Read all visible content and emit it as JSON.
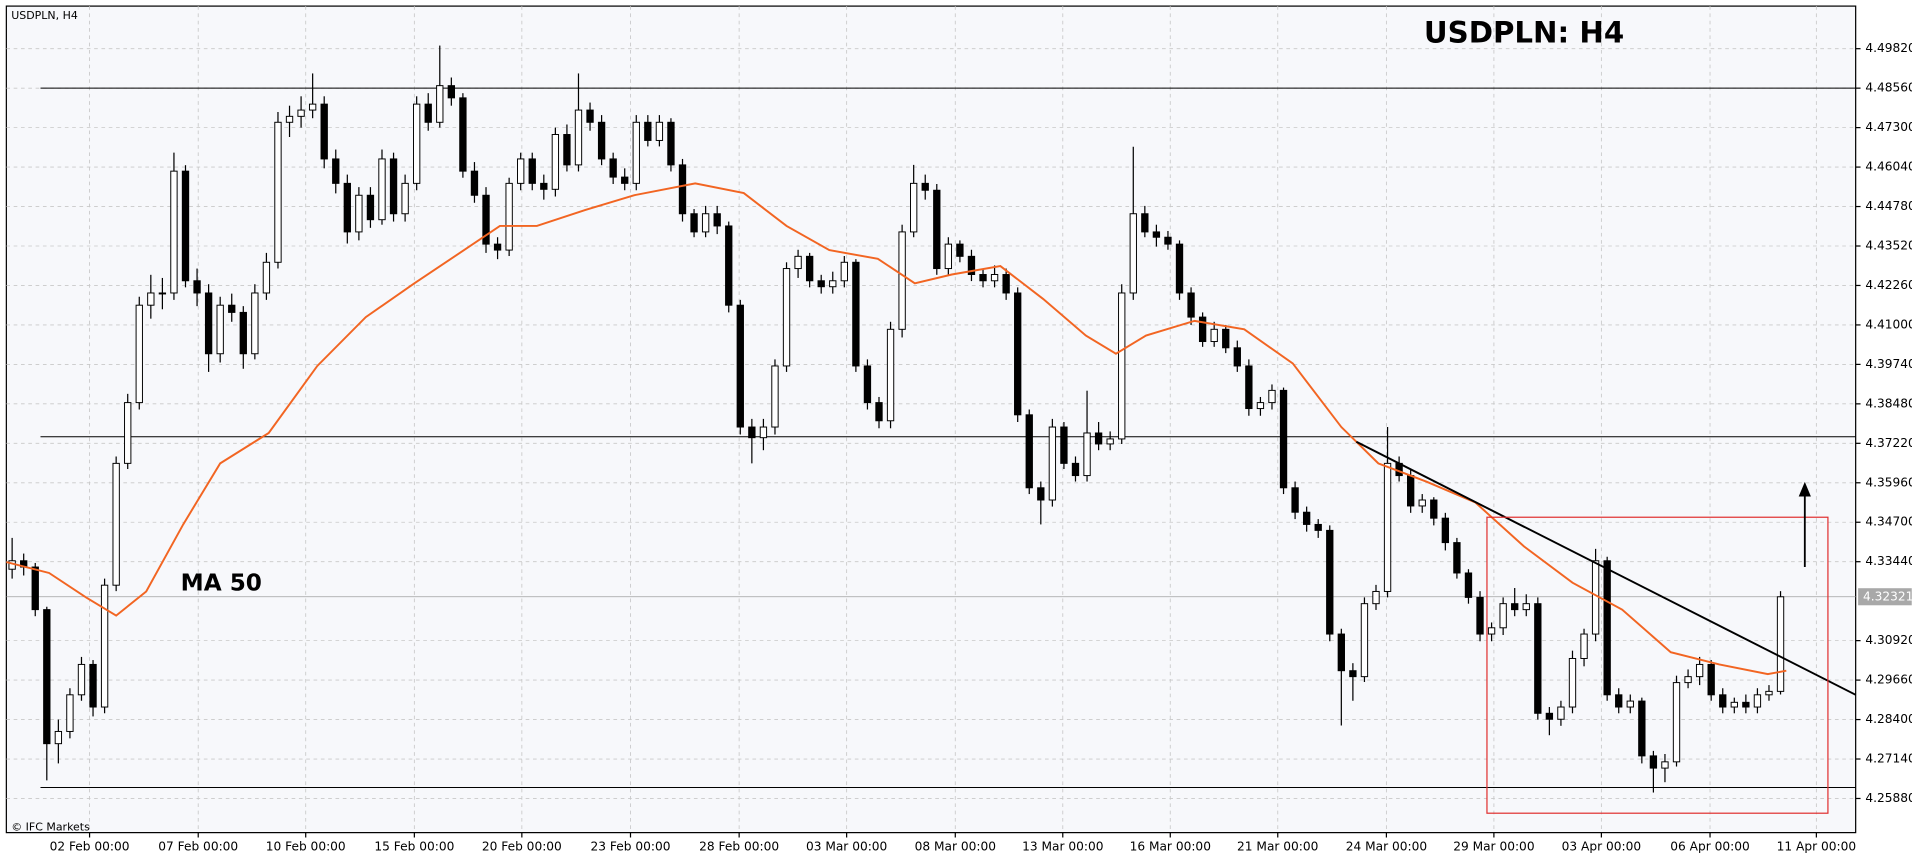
{
  "chart_data": {
    "type": "candlestick",
    "symbol_label": "USDPLN, H4",
    "title": "USDPLN: H4",
    "ma_label": "MA 50",
    "copyright": "© IFC Markets",
    "up_color": "#ffffff",
    "down_color": "#000000",
    "candles": [
      [
        4.332,
        4.342,
        4.329,
        4.3347
      ],
      [
        4.3347,
        4.337,
        4.33,
        4.3327
      ],
      [
        4.3327,
        4.334,
        4.317,
        4.3191
      ],
      [
        4.3191,
        4.32,
        4.2646,
        4.2763
      ],
      [
        4.2763,
        4.284,
        4.27,
        4.2802
      ],
      [
        4.2802,
        4.294,
        4.278,
        4.2919
      ],
      [
        4.2919,
        4.304,
        4.29,
        4.3016
      ],
      [
        4.3016,
        4.303,
        4.285,
        4.288
      ],
      [
        4.288,
        4.329,
        4.286,
        4.3269
      ],
      [
        4.3269,
        4.368,
        4.325,
        4.3658
      ],
      [
        4.3658,
        4.388,
        4.364,
        4.3852
      ],
      [
        4.3852,
        4.419,
        4.383,
        4.4163
      ],
      [
        4.4163,
        4.426,
        4.412,
        4.4202
      ],
      [
        4.4202,
        4.425,
        4.415,
        4.4202
      ],
      [
        4.4202,
        4.465,
        4.418,
        4.4591
      ],
      [
        4.4591,
        4.461,
        4.422,
        4.4241
      ],
      [
        4.4241,
        4.428,
        4.416,
        4.4202
      ],
      [
        4.4202,
        4.423,
        4.395,
        4.4008
      ],
      [
        4.4008,
        4.419,
        4.398,
        4.4163
      ],
      [
        4.4163,
        4.42,
        4.411,
        4.414
      ],
      [
        4.414,
        4.416,
        4.396,
        4.4008
      ],
      [
        4.4008,
        4.423,
        4.399,
        4.4202
      ],
      [
        4.4202,
        4.433,
        4.418,
        4.43
      ],
      [
        4.43,
        4.478,
        4.428,
        4.4747
      ],
      [
        4.4747,
        4.48,
        4.47,
        4.4766
      ],
      [
        4.4766,
        4.483,
        4.473,
        4.4786
      ],
      [
        4.4786,
        4.4903,
        4.476,
        4.4805
      ],
      [
        4.4805,
        4.483,
        4.46,
        4.463
      ],
      [
        4.463,
        4.466,
        4.452,
        4.4552
      ],
      [
        4.4552,
        4.458,
        4.436,
        4.4397
      ],
      [
        4.4397,
        4.454,
        4.437,
        4.4514
      ],
      [
        4.4514,
        4.454,
        4.441,
        4.4436
      ],
      [
        4.4436,
        4.466,
        4.442,
        4.463
      ],
      [
        4.463,
        4.465,
        4.443,
        4.4455
      ],
      [
        4.4455,
        4.458,
        4.443,
        4.4552
      ],
      [
        4.4552,
        4.483,
        4.453,
        4.4805
      ],
      [
        4.4805,
        4.484,
        4.472,
        4.4747
      ],
      [
        4.4747,
        4.4992,
        4.473,
        4.4864
      ],
      [
        4.4864,
        4.489,
        4.48,
        4.4825
      ],
      [
        4.4825,
        4.484,
        4.457,
        4.4591
      ],
      [
        4.4591,
        4.462,
        4.449,
        4.4514
      ],
      [
        4.4514,
        4.454,
        4.433,
        4.4358
      ],
      [
        4.4358,
        4.438,
        4.431,
        4.4339
      ],
      [
        4.4339,
        4.457,
        4.432,
        4.4552
      ],
      [
        4.4552,
        4.465,
        4.453,
        4.463
      ],
      [
        4.463,
        4.465,
        4.453,
        4.4552
      ],
      [
        4.4552,
        4.458,
        4.45,
        4.4533
      ],
      [
        4.4533,
        4.473,
        4.451,
        4.4708
      ],
      [
        4.4708,
        4.474,
        4.459,
        4.4611
      ],
      [
        4.4611,
        4.4903,
        4.459,
        4.4786
      ],
      [
        4.4786,
        4.481,
        4.472,
        4.4747
      ],
      [
        4.4747,
        4.477,
        4.461,
        4.463
      ],
      [
        4.463,
        4.465,
        4.455,
        4.4572
      ],
      [
        4.4572,
        4.46,
        4.453,
        4.4552
      ],
      [
        4.4552,
        4.477,
        4.453,
        4.4747
      ],
      [
        4.4747,
        4.477,
        4.467,
        4.4689
      ],
      [
        4.4689,
        4.477,
        4.467,
        4.4747
      ],
      [
        4.4747,
        4.476,
        4.459,
        4.4611
      ],
      [
        4.4611,
        4.463,
        4.443,
        4.4455
      ],
      [
        4.4455,
        4.447,
        4.438,
        4.4397
      ],
      [
        4.4397,
        4.448,
        4.438,
        4.4455
      ],
      [
        4.4455,
        4.448,
        4.439,
        4.4416
      ],
      [
        4.4416,
        4.443,
        4.414,
        4.4163
      ],
      [
        4.4163,
        4.418,
        4.375,
        4.3774
      ],
      [
        4.3774,
        4.38,
        4.3658,
        4.374
      ],
      [
        4.374,
        4.38,
        4.37,
        4.3774
      ],
      [
        4.3774,
        4.399,
        4.375,
        4.3969
      ],
      [
        4.3969,
        4.43,
        4.395,
        4.428
      ],
      [
        4.428,
        4.434,
        4.425,
        4.4319
      ],
      [
        4.4319,
        4.433,
        4.422,
        4.4241
      ],
      [
        4.4241,
        4.426,
        4.42,
        4.4222
      ],
      [
        4.4222,
        4.427,
        4.42,
        4.4241
      ],
      [
        4.4241,
        4.432,
        4.422,
        4.43
      ],
      [
        4.43,
        4.431,
        4.395,
        4.3969
      ],
      [
        4.3969,
        4.399,
        4.383,
        4.3852
      ],
      [
        4.3852,
        4.387,
        4.377,
        4.3794
      ],
      [
        4.3794,
        4.411,
        4.377,
        4.4086
      ],
      [
        4.4086,
        4.442,
        4.406,
        4.4397
      ],
      [
        4.4397,
        4.4611,
        4.438,
        4.4552
      ],
      [
        4.4552,
        4.458,
        4.45,
        4.453
      ],
      [
        4.453,
        4.455,
        4.426,
        4.428
      ],
      [
        4.428,
        4.438,
        4.426,
        4.4358
      ],
      [
        4.4358,
        4.437,
        4.43,
        4.4319
      ],
      [
        4.4319,
        4.434,
        4.424,
        4.4261
      ],
      [
        4.4261,
        4.428,
        4.422,
        4.4241
      ],
      [
        4.4241,
        4.429,
        4.422,
        4.4261
      ],
      [
        4.4261,
        4.428,
        4.418,
        4.4202
      ],
      [
        4.4202,
        4.422,
        4.379,
        4.3813
      ],
      [
        4.3813,
        4.383,
        4.356,
        4.358
      ],
      [
        4.358,
        4.36,
        4.3463,
        4.3541
      ],
      [
        4.3541,
        4.38,
        4.352,
        4.3774
      ],
      [
        4.3774,
        4.379,
        4.364,
        4.3658
      ],
      [
        4.3658,
        4.368,
        4.36,
        4.3619
      ],
      [
        4.3619,
        4.389,
        4.36,
        4.3755
      ],
      [
        4.3755,
        4.379,
        4.37,
        4.372
      ],
      [
        4.372,
        4.376,
        4.37,
        4.3736
      ],
      [
        4.3736,
        4.423,
        4.372,
        4.4202
      ],
      [
        4.4202,
        4.4669,
        4.418,
        4.4455
      ],
      [
        4.4455,
        4.448,
        4.438,
        4.4397
      ],
      [
        4.4397,
        4.442,
        4.435,
        4.438
      ],
      [
        4.438,
        4.44,
        4.434,
        4.4358
      ],
      [
        4.4358,
        4.437,
        4.418,
        4.4202
      ],
      [
        4.4202,
        4.422,
        4.41,
        4.4125
      ],
      [
        4.4125,
        4.414,
        4.403,
        4.4047
      ],
      [
        4.4047,
        4.411,
        4.403,
        4.4086
      ],
      [
        4.4086,
        4.41,
        4.401,
        4.4027
      ],
      [
        4.4027,
        4.405,
        4.395,
        4.3969
      ],
      [
        4.3969,
        4.399,
        4.381,
        4.3833
      ],
      [
        4.3833,
        4.387,
        4.381,
        4.3852
      ],
      [
        4.3852,
        4.391,
        4.383,
        4.3891
      ],
      [
        4.3891,
        4.39,
        4.356,
        4.358
      ],
      [
        4.358,
        4.36,
        4.348,
        4.3502
      ],
      [
        4.3502,
        4.352,
        4.344,
        4.3463
      ],
      [
        4.3463,
        4.348,
        4.342,
        4.3444
      ],
      [
        4.3444,
        4.346,
        4.309,
        4.3113
      ],
      [
        4.3113,
        4.313,
        4.2821,
        4.2996
      ],
      [
        4.2996,
        4.302,
        4.29,
        4.2977
      ],
      [
        4.2977,
        4.323,
        4.296,
        4.321
      ],
      [
        4.321,
        4.327,
        4.319,
        4.3249
      ],
      [
        4.3249,
        4.3774,
        4.323,
        4.3658
      ],
      [
        4.3658,
        4.368,
        4.36,
        4.3619
      ],
      [
        4.3619,
        4.364,
        4.35,
        4.3522
      ],
      [
        4.3522,
        4.356,
        4.35,
        4.3541
      ],
      [
        4.3541,
        4.355,
        4.346,
        4.3483
      ],
      [
        4.3483,
        4.35,
        4.338,
        4.3405
      ],
      [
        4.3405,
        4.342,
        4.329,
        4.3308
      ],
      [
        4.3308,
        4.332,
        4.321,
        4.323
      ],
      [
        4.323,
        4.325,
        4.309,
        4.3113
      ],
      [
        4.3113,
        4.315,
        4.309,
        4.3133
      ],
      [
        4.3133,
        4.323,
        4.311,
        4.321
      ],
      [
        4.321,
        4.326,
        4.317,
        4.3191
      ],
      [
        4.3191,
        4.324,
        4.317,
        4.321
      ],
      [
        4.321,
        4.323,
        4.284,
        4.286
      ],
      [
        4.286,
        4.288,
        4.279,
        4.2841
      ],
      [
        4.2841,
        4.29,
        4.282,
        4.288
      ],
      [
        4.288,
        4.306,
        4.286,
        4.3035
      ],
      [
        4.3035,
        4.313,
        4.301,
        4.3113
      ],
      [
        4.3113,
        4.3385,
        4.309,
        4.3347
      ],
      [
        4.3347,
        4.336,
        4.29,
        4.2919
      ],
      [
        4.2919,
        4.294,
        4.286,
        4.288
      ],
      [
        4.288,
        4.292,
        4.286,
        4.2899
      ],
      [
        4.2899,
        4.291,
        4.27,
        4.2724
      ],
      [
        4.2724,
        4.274,
        4.2607,
        4.2685
      ],
      [
        4.2685,
        4.273,
        4.264,
        4.2705
      ],
      [
        4.2705,
        4.298,
        4.269,
        4.2958
      ],
      [
        4.2958,
        4.3,
        4.294,
        4.2977
      ],
      [
        4.2977,
        4.304,
        4.295,
        4.3016
      ],
      [
        4.3016,
        4.303,
        4.29,
        4.2919
      ],
      [
        4.2919,
        4.294,
        4.286,
        4.288
      ],
      [
        4.288,
        4.291,
        4.286,
        4.2895
      ],
      [
        4.2895,
        4.292,
        4.286,
        4.288
      ],
      [
        4.288,
        4.294,
        4.286,
        4.2919
      ],
      [
        4.2919,
        4.295,
        4.29,
        4.293
      ],
      [
        4.293,
        4.325,
        4.292,
        4.3232
      ]
    ],
    "ma": {
      "color": "#f26522",
      "x": [
        0,
        3.7,
        6.9,
        9.5,
        12.1,
        15.3,
        18.5,
        22.7,
        26.9,
        31.1,
        35.3,
        39.6,
        42.7,
        45.9,
        50.1,
        54.3,
        59.6,
        63.8,
        67.5,
        71.2,
        75.4,
        78.6,
        81.8,
        86.0,
        89.7,
        93.4,
        96.0,
        98.6,
        102.8,
        107.1,
        111.3,
        115.5,
        118.7,
        122.9,
        127.1,
        131.3,
        135.5,
        139.8,
        144.0,
        148.2,
        152.4,
        154.0
      ],
      "values": [
        4.3343,
        4.3308,
        4.323,
        4.3172,
        4.3249,
        4.3463,
        4.3658,
        4.3755,
        4.3969,
        4.4125,
        4.4233,
        4.4339,
        4.4416,
        4.4416,
        4.4467,
        4.4514,
        4.4552,
        4.4521,
        4.4416,
        4.4339,
        4.4311,
        4.4233,
        4.4261,
        4.4288,
        4.4183,
        4.4066,
        4.4008,
        4.4066,
        4.4113,
        4.4086,
        4.3977,
        4.3774,
        4.3658,
        4.3599,
        4.3533,
        4.3393,
        4.3277,
        4.3191,
        4.3055,
        4.3016,
        4.2985,
        4.2996
      ]
    },
    "levels": [
      4.4856,
      4.3743,
      4.2623
    ],
    "current_price": 4.32321,
    "trendline": {
      "x": [
        116.8,
        160
      ],
      "values": [
        4.3727,
        4.2919
      ]
    },
    "box": {
      "color": "#e03030",
      "x": [
        128.1,
        157.6
      ],
      "values": [
        4.3486,
        4.2541
      ]
    },
    "arrow": {
      "x": 155.6,
      "values": [
        4.3327,
        4.3599
      ]
    },
    "xlim": [
      0,
      160
    ],
    "xticks": [
      {
        "value": 7.2,
        "label": "02 Feb 00:00"
      },
      {
        "value": 16.6,
        "label": "07 Feb 00:00"
      },
      {
        "value": 25.9,
        "label": "10 Feb 00:00"
      },
      {
        "value": 35.3,
        "label": "15 Feb 00:00"
      },
      {
        "value": 44.6,
        "label": "20 Feb 00:00"
      },
      {
        "value": 54,
        "label": "23 Feb 00:00"
      },
      {
        "value": 63.4,
        "label": "28 Feb 00:00"
      },
      {
        "value": 72.7,
        "label": "03 Mar 00:00"
      },
      {
        "value": 82.1,
        "label": "08 Mar 00:00"
      },
      {
        "value": 91.4,
        "label": "13 Mar 00:00"
      },
      {
        "value": 100.7,
        "label": "16 Mar 00:00"
      },
      {
        "value": 110,
        "label": "21 Mar 00:00"
      },
      {
        "value": 119.4,
        "label": "24 Mar 00:00"
      },
      {
        "value": 128.7,
        "label": "29 Mar 00:00"
      },
      {
        "value": 138,
        "label": "03 Apr 00:00"
      },
      {
        "value": 147.4,
        "label": "06 Apr 00:00"
      },
      {
        "value": 156.6,
        "label": "11 Apr 00:00"
      }
    ],
    "ylim": [
      4.2479,
      4.5118
    ],
    "yticks": [
      {
        "value": 4.2588,
        "label": "4.25880"
      },
      {
        "value": 4.2714,
        "label": "4.27140"
      },
      {
        "value": 4.284,
        "label": "4.28400"
      },
      {
        "value": 4.2966,
        "label": "4.29660"
      },
      {
        "value": 4.3092,
        "label": "4.30920"
      },
      {
        "value": 4.3344,
        "label": "4.33440"
      },
      {
        "value": 4.347,
        "label": "4.34700"
      },
      {
        "value": 4.3596,
        "label": "4.35960"
      },
      {
        "value": 4.3722,
        "label": "4.37220"
      },
      {
        "value": 4.3848,
        "label": "4.38480"
      },
      {
        "value": 4.3974,
        "label": "4.39740"
      },
      {
        "value": 4.41,
        "label": "4.41000"
      },
      {
        "value": 4.4226,
        "label": "4.42260"
      },
      {
        "value": 4.4352,
        "label": "4.43520"
      },
      {
        "value": 4.4478,
        "label": "4.44780"
      },
      {
        "value": 4.4604,
        "label": "4.46040"
      },
      {
        "value": 4.473,
        "label": "4.47300"
      },
      {
        "value": 4.4856,
        "label": "4.48560"
      },
      {
        "value": 4.4982,
        "label": "4.49820"
      }
    ],
    "grid": true
  }
}
